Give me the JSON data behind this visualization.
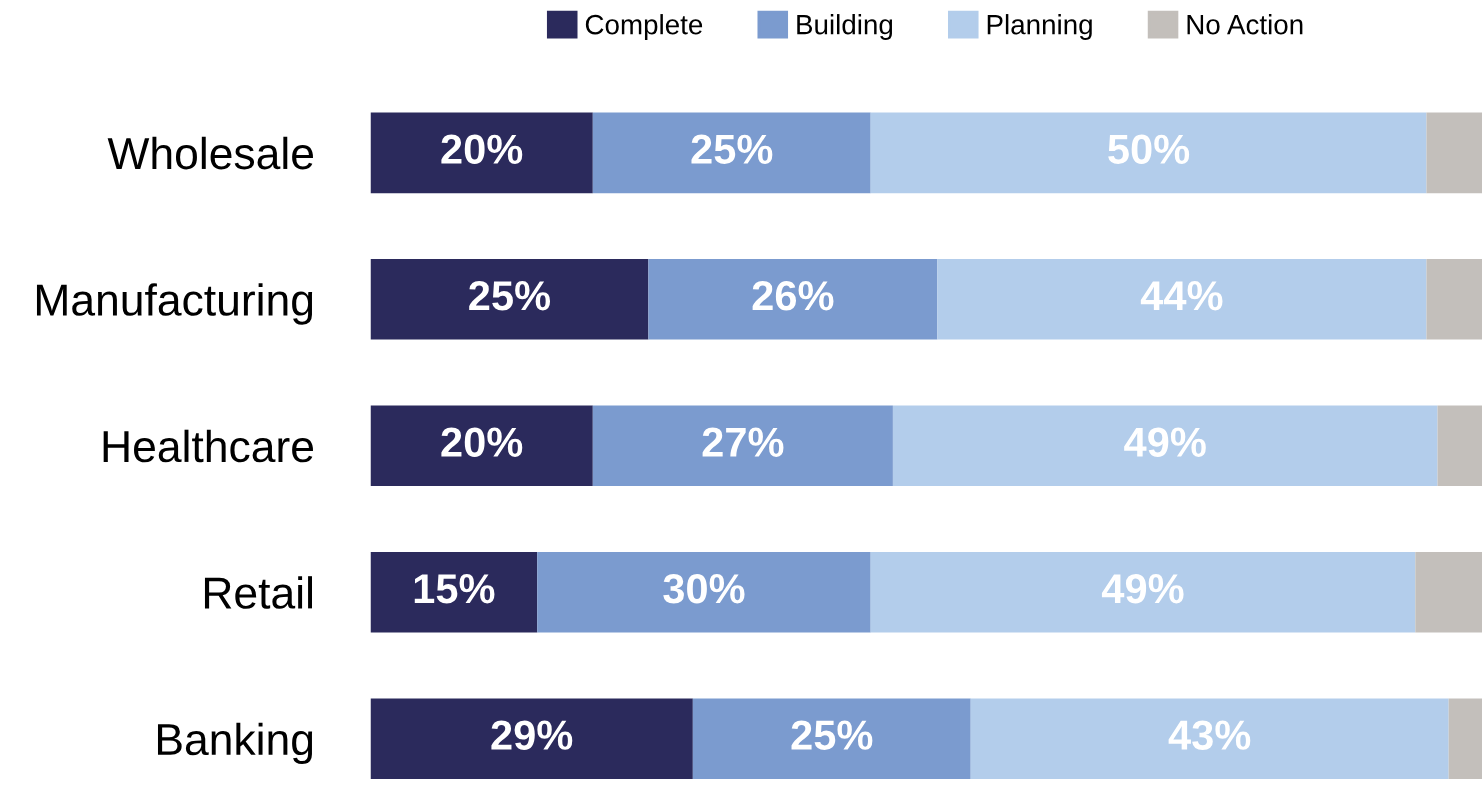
{
  "chart_data": {
    "type": "bar",
    "orientation": "horizontal",
    "stacked": true,
    "legend": "top",
    "categories": [
      "Wholesale",
      "Manufacturing",
      "Healthcare",
      "Retail",
      "Banking"
    ],
    "series": [
      {
        "name": "Complete",
        "color": "#2b2a5c",
        "values": [
          20,
          25,
          20,
          15,
          29
        ],
        "value_labels": [
          "20%",
          "25%",
          "20%",
          "15%",
          "29%"
        ]
      },
      {
        "name": "Building",
        "color": "#7b9bcf",
        "values": [
          25,
          26,
          27,
          30,
          25
        ],
        "value_labels": [
          "25%",
          "26%",
          "27%",
          "30%",
          "25%"
        ]
      },
      {
        "name": "Planning",
        "color": "#b3cdeb",
        "values": [
          50,
          44,
          49,
          49,
          43
        ],
        "value_labels": [
          "50%",
          "44%",
          "49%",
          "49%",
          "43%"
        ]
      },
      {
        "name": "No Action",
        "color": "#c3bfbb",
        "values": [
          5,
          5,
          4,
          6,
          3
        ],
        "value_labels": [
          null,
          null,
          null,
          null,
          null
        ]
      }
    ]
  }
}
